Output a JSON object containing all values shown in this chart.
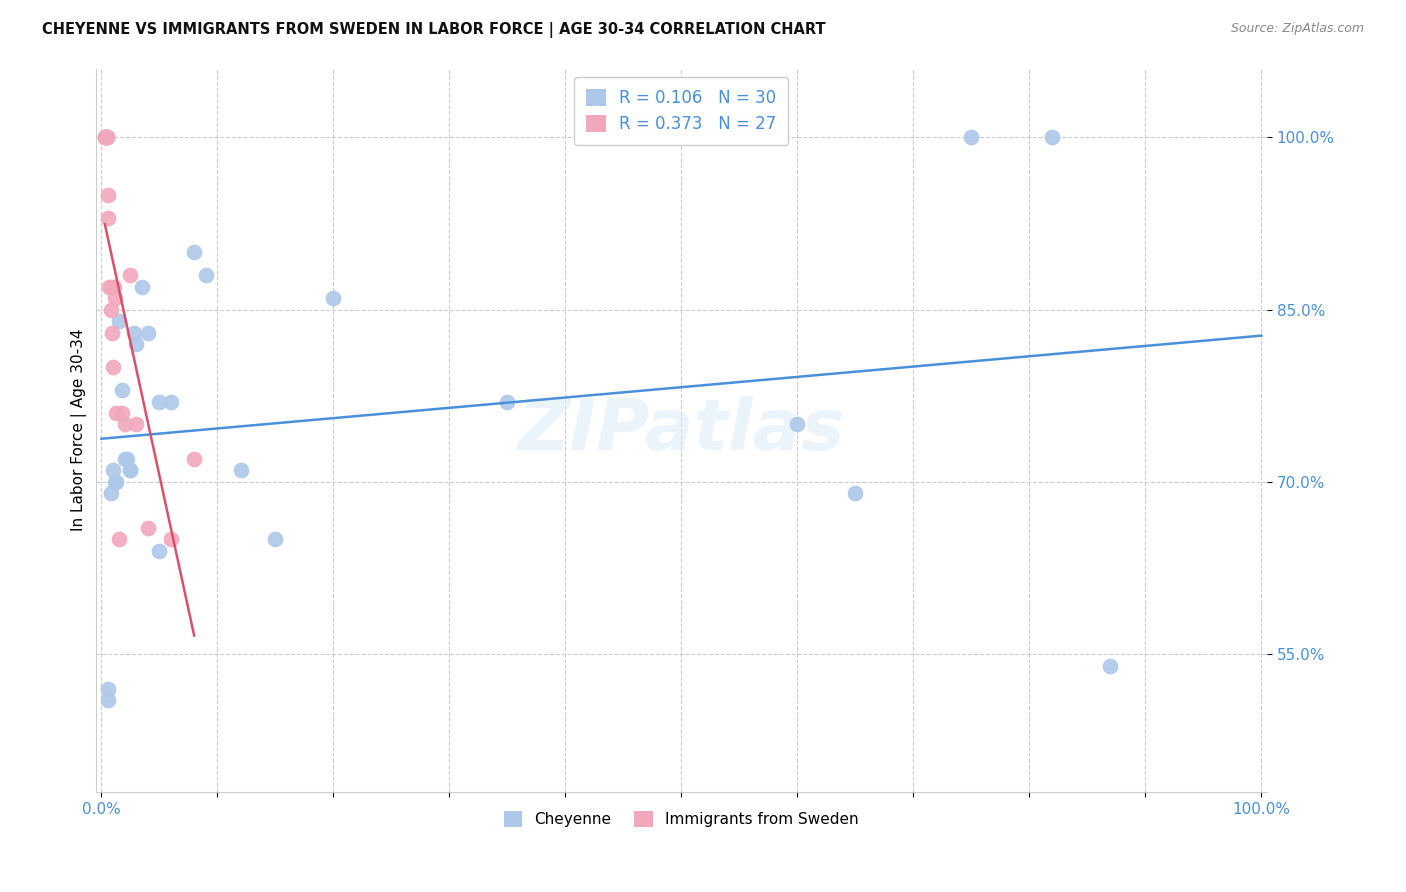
{
  "title": "CHEYENNE VS IMMIGRANTS FROM SWEDEN IN LABOR FORCE | AGE 30-34 CORRELATION CHART",
  "source": "Source: ZipAtlas.com",
  "ylabel": "In Labor Force | Age 30-34",
  "cheyenne_color": "#adc8e8",
  "sweden_color": "#f2a8bc",
  "regression_blue": "#4a90d9",
  "regression_pink": "#d9506a",
  "legend_R_blue": "R = 0.106",
  "legend_N_blue": "N = 30",
  "legend_R_pink": "R = 0.373",
  "legend_N_pink": "N = 27",
  "watermark": "ZIPatlas",
  "cheyenne_x": [
    0.006,
    0.006,
    0.008,
    0.01,
    0.012,
    0.013,
    0.015,
    0.018,
    0.02,
    0.022,
    0.025,
    0.028,
    0.03,
    0.035,
    0.04,
    0.05,
    0.06,
    0.08,
    0.09,
    0.12,
    0.15,
    0.2,
    0.35,
    0.6,
    0.65,
    0.75,
    0.82,
    0.87,
    0.05,
    0.025
  ],
  "cheyenne_y": [
    0.51,
    0.52,
    0.69,
    0.71,
    0.7,
    0.7,
    0.84,
    0.78,
    0.72,
    0.72,
    0.71,
    0.83,
    0.82,
    0.87,
    0.83,
    0.77,
    0.77,
    0.9,
    0.88,
    0.71,
    0.65,
    0.86,
    0.77,
    0.75,
    0.69,
    1.0,
    1.0,
    0.54,
    0.64,
    0.71
  ],
  "sweden_x": [
    0.003,
    0.003,
    0.003,
    0.004,
    0.004,
    0.004,
    0.005,
    0.005,
    0.005,
    0.006,
    0.006,
    0.007,
    0.008,
    0.008,
    0.009,
    0.01,
    0.011,
    0.012,
    0.013,
    0.015,
    0.018,
    0.02,
    0.025,
    0.03,
    0.04,
    0.06,
    0.08
  ],
  "sweden_y": [
    1.0,
    1.0,
    1.0,
    1.0,
    1.0,
    1.0,
    1.0,
    1.0,
    1.0,
    0.95,
    0.93,
    0.87,
    0.87,
    0.85,
    0.83,
    0.8,
    0.87,
    0.86,
    0.76,
    0.65,
    0.76,
    0.75,
    0.88,
    0.75,
    0.66,
    0.65,
    0.72
  ],
  "xlim": [
    -0.005,
    1.005
  ],
  "ylim": [
    0.43,
    1.06
  ],
  "yticks": [
    0.55,
    0.7,
    0.85,
    1.0
  ],
  "ytick_labels": [
    "55.0%",
    "70.0%",
    "85.0%",
    "100.0%"
  ],
  "grid_color": "#cccccc",
  "tick_color": "#4a90d9"
}
